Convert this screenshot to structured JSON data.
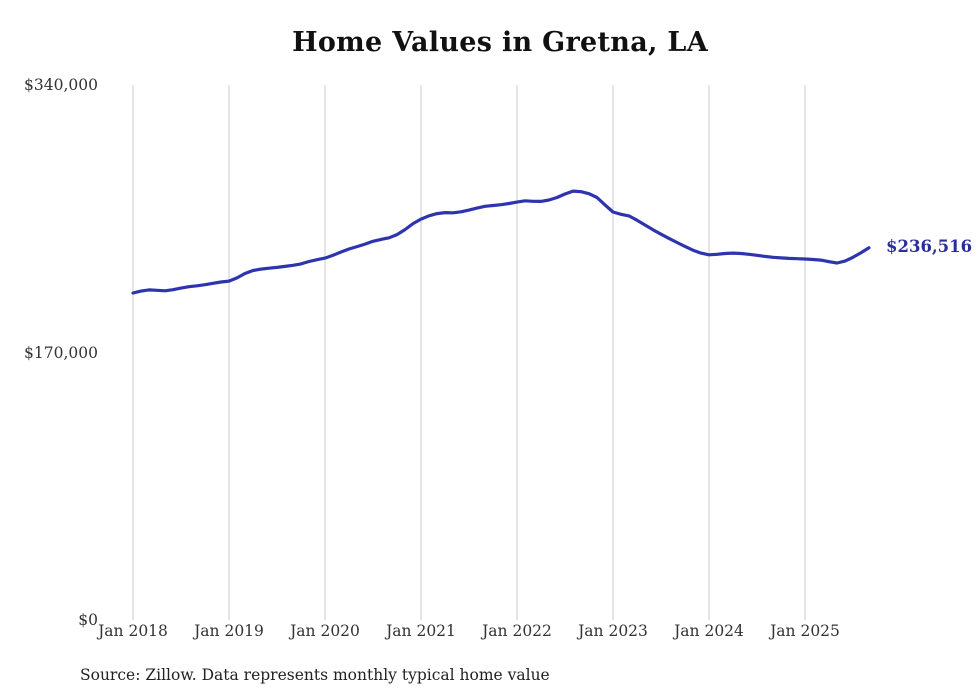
{
  "title": "Home Values in Gretna, LA",
  "end_label": "$236,516",
  "source_note": "Source: Zillow. Data represents monthly typical home value",
  "colors": {
    "line": "#2e34ad",
    "end_label_text": "#2b2f9e",
    "grid": "#cccccc",
    "axis_text": "#333333",
    "title_text": "#111111"
  },
  "chart_data": {
    "type": "line",
    "title": "Home Values in Gretna, LA",
    "xlabel": "",
    "ylabel": "",
    "unit": "USD",
    "frequency": "monthly",
    "x_start": "2018-01",
    "x_end": "2025-09",
    "ylim": [
      0,
      340000
    ],
    "grid": "vertical-only",
    "legend": "none",
    "y_ticks": [
      {
        "label": "$340,000",
        "value": 340000
      },
      {
        "label": "$170,000",
        "value": 170000
      },
      {
        "label": "$0",
        "value": 0
      }
    ],
    "x_tick_labels": [
      "Jan 2018",
      "Jan 2019",
      "Jan 2020",
      "Jan 2021",
      "Jan 2022",
      "Jan 2023",
      "Jan 2024",
      "Jan 2025"
    ],
    "end_value": 236516,
    "end_value_label": "$236,516",
    "series": [
      {
        "name": "Typical home value",
        "values": [
          207800,
          209000,
          209800,
          209500,
          209200,
          209900,
          210900,
          211800,
          212400,
          213100,
          214000,
          214800,
          215400,
          217400,
          220200,
          222100,
          223000,
          223600,
          224100,
          224700,
          225400,
          226300,
          227800,
          229000,
          230000,
          231800,
          233900,
          235800,
          237300,
          238900,
          240700,
          241900,
          242900,
          244900,
          248100,
          251900,
          254800,
          256900,
          258300,
          258900,
          258800,
          259400,
          260500,
          261800,
          262900,
          263400,
          263900,
          264700,
          265600,
          266400,
          266100,
          266000,
          266900,
          268500,
          270700,
          272600,
          272200,
          270900,
          268500,
          263800,
          259300,
          257800,
          256800,
          254100,
          251000,
          248000,
          245200,
          242500,
          239900,
          237400,
          235000,
          233200,
          232100,
          232400,
          232900,
          233200,
          232900,
          232400,
          231800,
          231100,
          230500,
          230100,
          229800,
          229600,
          229400,
          229100,
          228700,
          227700,
          226900,
          228100,
          230500,
          233400,
          236516
        ]
      }
    ]
  }
}
